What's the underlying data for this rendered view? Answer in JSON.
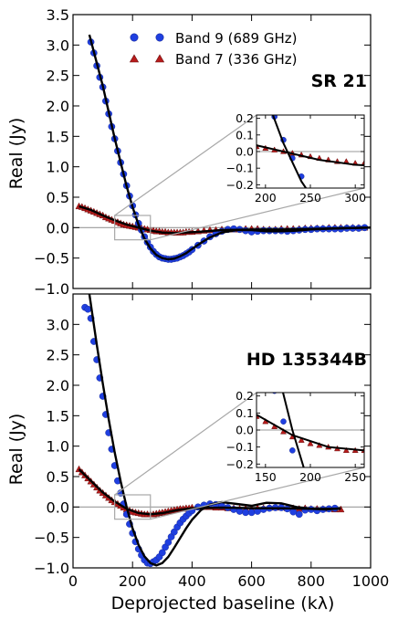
{
  "figure": {
    "ylabel": "Real (Jy)",
    "xlabel": "Deprojected baseline (kλ)"
  },
  "legend": {
    "band9": "Band 9 (689 GHz)",
    "band7": "Band 7 (336 GHz)"
  },
  "colors": {
    "band9": "#1f3fe0",
    "band7": "#b81c1c",
    "model": "#000000",
    "zero_line": "#9a9a9a",
    "zoom_box": "#a8a8a8"
  },
  "chart_data": [
    {
      "type": "scatter",
      "panel": "top",
      "title": "SR 21",
      "ylabel": "Real (Jy)",
      "xlim": [
        0,
        1000
      ],
      "ylim": [
        -1.0,
        3.5
      ],
      "xticks": [
        0,
        200,
        400,
        600,
        800,
        1000
      ],
      "yticks": [
        -1.0,
        -0.5,
        0.0,
        0.5,
        1.0,
        1.5,
        2.0,
        2.5,
        3.0,
        3.5
      ],
      "ytick_labels": [
        "−1.0",
        "−0.5",
        "0.0",
        "0.5",
        "1.0",
        "1.5",
        "2.0",
        "2.5",
        "3.0",
        "3.5"
      ],
      "series": [
        {
          "name": "Band 9 (689 GHz)",
          "marker": "circle",
          "x": [
            60,
            70,
            80,
            90,
            100,
            110,
            120,
            130,
            140,
            150,
            160,
            170,
            180,
            190,
            200,
            210,
            220,
            230,
            240,
            250,
            260,
            270,
            280,
            290,
            300,
            310,
            320,
            330,
            340,
            350,
            360,
            370,
            380,
            390,
            400,
            420,
            440,
            460,
            480,
            500,
            520,
            540,
            560,
            580,
            600,
            620,
            640,
            660,
            680,
            700,
            720,
            740,
            760,
            780,
            800,
            820,
            840,
            860,
            880,
            900,
            920,
            940,
            960,
            980
          ],
          "y": [
            3.05,
            2.87,
            2.66,
            2.47,
            2.31,
            2.08,
            1.87,
            1.66,
            1.46,
            1.26,
            1.07,
            0.88,
            0.69,
            0.52,
            0.36,
            0.21,
            0.07,
            -0.04,
            -0.15,
            -0.24,
            -0.32,
            -0.39,
            -0.44,
            -0.48,
            -0.5,
            -0.51,
            -0.52,
            -0.52,
            -0.51,
            -0.5,
            -0.48,
            -0.46,
            -0.43,
            -0.4,
            -0.36,
            -0.29,
            -0.22,
            -0.15,
            -0.1,
            -0.06,
            -0.03,
            -0.02,
            -0.03,
            -0.05,
            -0.07,
            -0.06,
            -0.05,
            -0.05,
            -0.05,
            -0.05,
            -0.06,
            -0.05,
            -0.04,
            -0.03,
            -0.03,
            -0.02,
            -0.02,
            -0.02,
            -0.02,
            -0.02,
            -0.01,
            -0.01,
            -0.01,
            0.0
          ]
        },
        {
          "name": "Band 7 (336 GHz)",
          "marker": "triangle",
          "x": [
            20,
            30,
            40,
            50,
            60,
            70,
            80,
            90,
            100,
            110,
            120,
            130,
            140,
            150,
            160,
            170,
            180,
            190,
            200,
            210,
            220,
            230,
            240,
            250,
            260,
            270,
            280,
            290,
            300,
            310,
            320,
            330,
            340,
            350,
            360,
            370,
            380,
            390,
            400,
            420,
            440,
            460,
            480,
            500,
            520,
            540,
            560,
            580,
            600,
            620,
            640,
            660,
            680,
            700,
            720,
            740,
            760,
            780,
            800,
            820,
            840,
            860,
            880,
            900,
            920,
            940,
            960,
            980
          ],
          "y": [
            0.35,
            0.34,
            0.32,
            0.3,
            0.28,
            0.26,
            0.24,
            0.22,
            0.2,
            0.17,
            0.15,
            0.13,
            0.11,
            0.09,
            0.07,
            0.05,
            0.04,
            0.03,
            0.02,
            0.01,
            0.0,
            -0.01,
            -0.02,
            -0.03,
            -0.04,
            -0.05,
            -0.06,
            -0.06,
            -0.07,
            -0.07,
            -0.08,
            -0.08,
            -0.08,
            -0.08,
            -0.08,
            -0.08,
            -0.07,
            -0.07,
            -0.07,
            -0.06,
            -0.05,
            -0.04,
            -0.04,
            -0.03,
            -0.03,
            -0.03,
            -0.03,
            -0.02,
            -0.02,
            -0.02,
            -0.03,
            -0.03,
            -0.03,
            -0.02,
            -0.02,
            -0.02,
            -0.02,
            -0.01,
            -0.01,
            -0.01,
            -0.01,
            0.0,
            0.0,
            0.0,
            0.0,
            0.0,
            0.0,
            0.0
          ]
        },
        {
          "name": "Band 9 model",
          "type": "line",
          "x": [
            55,
            80,
            100,
            120,
            140,
            160,
            180,
            200,
            220,
            240,
            260,
            280,
            300,
            320,
            340,
            360,
            380,
            400,
            430,
            460,
            500,
            550,
            600,
            650,
            700,
            750,
            800,
            900,
            1000
          ],
          "y": [
            3.17,
            2.7,
            2.33,
            1.9,
            1.47,
            1.07,
            0.68,
            0.34,
            0.05,
            -0.18,
            -0.34,
            -0.45,
            -0.5,
            -0.52,
            -0.51,
            -0.47,
            -0.42,
            -0.35,
            -0.25,
            -0.16,
            -0.08,
            -0.04,
            -0.04,
            -0.06,
            -0.06,
            -0.05,
            -0.03,
            -0.01,
            0.0
          ]
        },
        {
          "name": "Band 7 model",
          "type": "line",
          "x": [
            20,
            60,
            100,
            140,
            180,
            220,
            260,
            300,
            340,
            380,
            420,
            500,
            600,
            700,
            800,
            900,
            1000
          ],
          "y": [
            0.35,
            0.29,
            0.2,
            0.12,
            0.05,
            0.0,
            -0.05,
            -0.08,
            -0.09,
            -0.08,
            -0.07,
            -0.04,
            -0.03,
            -0.03,
            -0.02,
            -0.01,
            0.0
          ]
        }
      ],
      "inset": {
        "xlim": [
          190,
          310
        ],
        "ylim": [
          -0.22,
          0.22
        ],
        "xticks": [
          200,
          250,
          300
        ],
        "yticks": [
          -0.2,
          -0.1,
          0.0,
          0.1,
          0.2
        ],
        "ytick_labels": [
          "−0.2",
          "−0.1",
          "0.0",
          "0.1",
          "0.2"
        ],
        "zoom_region": {
          "x": [
            140,
            260
          ],
          "y": [
            -0.2,
            0.2
          ]
        }
      }
    },
    {
      "type": "scatter",
      "panel": "bottom",
      "title": "HD 135344B",
      "ylabel": "Real (Jy)",
      "xlabel": "Deprojected baseline (kλ)",
      "xlim": [
        0,
        1000
      ],
      "ylim": [
        -1.0,
        3.5
      ],
      "xticks": [
        0,
        200,
        400,
        600,
        800,
        1000
      ],
      "yticks": [
        -1.0,
        -0.5,
        0.0,
        0.5,
        1.0,
        1.5,
        2.0,
        2.5,
        3.0
      ],
      "ytick_labels": [
        "−1.0",
        "−0.5",
        "0.0",
        "0.5",
        "1.0",
        "1.5",
        "2.0",
        "2.5",
        "3.0"
      ],
      "series": [
        {
          "name": "Band 9 (689 GHz)",
          "marker": "circle",
          "x": [
            40,
            50,
            60,
            70,
            80,
            90,
            100,
            110,
            120,
            130,
            140,
            150,
            160,
            170,
            180,
            190,
            200,
            210,
            220,
            230,
            240,
            250,
            260,
            270,
            280,
            290,
            300,
            310,
            320,
            330,
            340,
            350,
            360,
            370,
            380,
            390,
            400,
            420,
            440,
            460,
            480,
            500,
            520,
            540,
            560,
            580,
            600,
            620,
            640,
            660,
            680,
            700,
            720,
            740,
            760,
            780,
            800,
            820,
            840,
            860,
            880
          ],
          "y": [
            3.28,
            3.25,
            3.1,
            2.72,
            2.42,
            2.12,
            1.82,
            1.52,
            1.22,
            0.95,
            0.68,
            0.43,
            0.23,
            0.05,
            -0.12,
            -0.28,
            -0.43,
            -0.57,
            -0.69,
            -0.79,
            -0.87,
            -0.92,
            -0.93,
            -0.9,
            -0.87,
            -0.82,
            -0.75,
            -0.66,
            -0.58,
            -0.49,
            -0.41,
            -0.33,
            -0.26,
            -0.2,
            -0.15,
            -0.1,
            -0.06,
            0.0,
            0.03,
            0.05,
            0.04,
            0.02,
            -0.01,
            -0.04,
            -0.07,
            -0.09,
            -0.09,
            -0.07,
            -0.04,
            -0.02,
            -0.01,
            -0.01,
            -0.03,
            -0.08,
            -0.12,
            -0.05,
            -0.04,
            -0.06,
            -0.04,
            -0.03,
            -0.02
          ]
        },
        {
          "name": "Band 7 (336 GHz)",
          "marker": "triangle",
          "x": [
            20,
            30,
            40,
            50,
            60,
            70,
            80,
            90,
            100,
            110,
            120,
            130,
            140,
            150,
            160,
            170,
            180,
            190,
            200,
            210,
            220,
            230,
            240,
            250,
            260,
            270,
            280,
            290,
            300,
            310,
            320,
            330,
            340,
            350,
            360,
            370,
            380,
            390,
            400,
            420,
            440,
            460,
            480,
            500,
            520,
            540,
            560,
            580,
            600,
            620,
            640,
            660,
            680,
            700,
            720,
            740,
            760,
            780,
            800,
            820,
            840,
            860,
            880,
            900
          ],
          "y": [
            0.62,
            0.57,
            0.52,
            0.47,
            0.42,
            0.37,
            0.32,
            0.27,
            0.23,
            0.19,
            0.15,
            0.11,
            0.08,
            0.05,
            0.02,
            -0.01,
            -0.04,
            -0.06,
            -0.08,
            -0.09,
            -0.1,
            -0.11,
            -0.12,
            -0.12,
            -0.12,
            -0.12,
            -0.11,
            -0.1,
            -0.09,
            -0.08,
            -0.07,
            -0.06,
            -0.05,
            -0.04,
            -0.03,
            -0.03,
            -0.02,
            -0.02,
            -0.01,
            0.0,
            0.0,
            0.0,
            -0.01,
            -0.01,
            -0.02,
            -0.02,
            -0.03,
            -0.03,
            -0.03,
            -0.02,
            -0.02,
            -0.01,
            -0.01,
            -0.01,
            -0.02,
            -0.02,
            -0.03,
            -0.02,
            -0.03,
            -0.03,
            -0.03,
            -0.03,
            -0.04,
            -0.04
          ]
        },
        {
          "name": "Band 9 model",
          "type": "line",
          "x": [
            55,
            80,
            100,
            120,
            140,
            160,
            180,
            200,
            220,
            240,
            260,
            280,
            300,
            320,
            340,
            360,
            380,
            400,
            430,
            460,
            500,
            550,
            600,
            650,
            700,
            750,
            800,
            850,
            900
          ],
          "y": [
            3.5,
            2.66,
            2.03,
            1.44,
            0.9,
            0.42,
            0.0,
            -0.35,
            -0.62,
            -0.81,
            -0.92,
            -0.96,
            -0.92,
            -0.82,
            -0.67,
            -0.51,
            -0.35,
            -0.21,
            -0.05,
            0.04,
            0.08,
            0.05,
            0.02,
            0.07,
            0.06,
            0.0,
            -0.03,
            -0.04,
            -0.02
          ]
        },
        {
          "name": "Band 7 model",
          "type": "line",
          "x": [
            20,
            60,
            100,
            140,
            180,
            220,
            260,
            300,
            350,
            400,
            500,
            600,
            700,
            800,
            900
          ],
          "y": [
            0.62,
            0.43,
            0.24,
            0.09,
            -0.03,
            -0.1,
            -0.12,
            -0.1,
            -0.05,
            -0.02,
            -0.01,
            -0.02,
            -0.02,
            -0.03,
            -0.03
          ]
        }
      ],
      "inset": {
        "xlim": [
          140,
          260
        ],
        "ylim": [
          -0.22,
          0.22
        ],
        "xticks": [
          150,
          200,
          250
        ],
        "yticks": [
          -0.2,
          -0.1,
          0.0,
          0.1,
          0.2
        ],
        "ytick_labels": [
          "−0.2",
          "−0.1",
          "0.0",
          "0.1",
          "0.2"
        ],
        "zoom_region": {
          "x": [
            140,
            260
          ],
          "y": [
            -0.2,
            0.2
          ]
        }
      }
    }
  ]
}
